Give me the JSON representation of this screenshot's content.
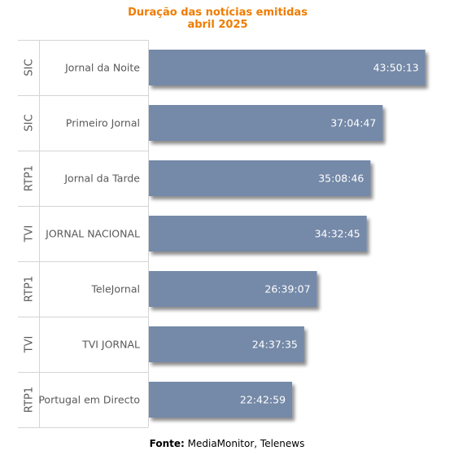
{
  "chart_data": {
    "type": "bar",
    "orientation": "horizontal",
    "title": "Duração das notícias emitidas",
    "subtitle": "abril 2025",
    "group_labels": [
      "SIC",
      "SIC",
      "RTP1",
      "TVI",
      "RTP1",
      "TVI",
      "RTP1"
    ],
    "categories": [
      "Jornal da Noite",
      "Primeiro Jornal",
      "Jornal da Tarde",
      "JORNAL NACIONAL",
      "TeleJornal",
      "TVI JORNAL",
      "Portugal em Directo"
    ],
    "labels": [
      "43:50:13",
      "37:04:47",
      "35:08:46",
      "34:32:45",
      "26:39:07",
      "24:37:35",
      "22:42:59"
    ],
    "values_hours": [
      43.837,
      37.08,
      35.146,
      34.546,
      26.652,
      24.627,
      22.716
    ],
    "bar_color": "#7489a8",
    "label_color": "#ffffff",
    "grid": false,
    "legend": "none"
  },
  "source": {
    "label": "Fonte:",
    "text": " MediaMonitor, Telenews"
  }
}
